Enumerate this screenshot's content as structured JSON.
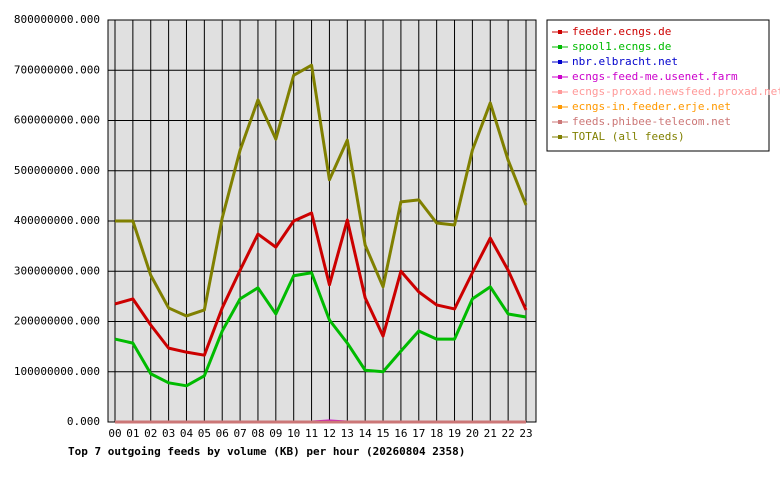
{
  "chart_data": {
    "type": "line",
    "title": "Top 7 outgoing feeds by volume (KB) per hour (20260804 2358)",
    "categories": [
      "00",
      "01",
      "02",
      "03",
      "04",
      "05",
      "06",
      "07",
      "08",
      "09",
      "10",
      "11",
      "12",
      "13",
      "14",
      "15",
      "16",
      "17",
      "18",
      "19",
      "20",
      "21",
      "22",
      "23"
    ],
    "ylim": [
      0,
      800000000
    ],
    "yticks": [
      {
        "value": 0,
        "label": "0.000"
      },
      {
        "value": 100000000,
        "label": "100000000.000"
      },
      {
        "value": 200000000,
        "label": "200000000.000"
      },
      {
        "value": 300000000,
        "label": "300000000.000"
      },
      {
        "value": 400000000,
        "label": "400000000.000"
      },
      {
        "value": 500000000,
        "label": "500000000.000"
      },
      {
        "value": 600000000,
        "label": "600000000.000"
      },
      {
        "value": 700000000,
        "label": "700000000.000"
      },
      {
        "value": 800000000,
        "label": "800000000.000"
      }
    ],
    "grid": true,
    "legend": "right",
    "series": [
      {
        "name": "feeder.ecngs.de",
        "color": "#cc0000",
        "values": [
          235000000,
          245000000,
          193000000,
          147000000,
          139000000,
          133000000,
          227000000,
          302000000,
          374000000,
          348000000,
          400000000,
          416000000,
          273000000,
          402000000,
          247000000,
          171000000,
          300000000,
          259000000,
          233000000,
          225000000,
          297000000,
          366000000,
          302000000,
          223000000
        ]
      },
      {
        "name": "spool1.ecngs.de",
        "color": "#00bb00",
        "values": [
          165000000,
          157000000,
          96000000,
          78000000,
          72000000,
          92000000,
          181000000,
          245000000,
          267000000,
          215000000,
          291000000,
          297000000,
          203000000,
          157000000,
          103000000,
          100000000,
          141000000,
          181000000,
          165000000,
          165000000,
          245000000,
          269000000,
          215000000,
          209000000
        ]
      },
      {
        "name": "nbr.elbracht.net",
        "color": "#0000cc",
        "values": [
          0,
          0,
          0,
          0,
          0,
          0,
          0,
          0,
          0,
          0,
          0,
          0,
          0,
          0,
          0,
          0,
          0,
          0,
          0,
          0,
          0,
          0,
          0,
          0
        ]
      },
      {
        "name": "ecngs-feed-me.usenet.farm",
        "color": "#cc00cc",
        "values": [
          0,
          0,
          0,
          0,
          0,
          0,
          0,
          0,
          0,
          0,
          0,
          0,
          2000000,
          0,
          0,
          0,
          0,
          0,
          0,
          0,
          0,
          0,
          0,
          0
        ]
      },
      {
        "name": "ecngs-proxad.newsfeed.proxad.net",
        "color": "#ff9999",
        "values": [
          0,
          0,
          0,
          0,
          0,
          0,
          0,
          0,
          0,
          0,
          0,
          0,
          0,
          0,
          0,
          0,
          0,
          0,
          0,
          0,
          0,
          0,
          0,
          0
        ]
      },
      {
        "name": "ecngs-in.feeder.erje.net",
        "color": "#ff9900",
        "values": [
          0,
          0,
          0,
          0,
          0,
          0,
          0,
          0,
          0,
          0,
          0,
          0,
          0,
          0,
          0,
          0,
          0,
          0,
          0,
          0,
          0,
          0,
          0,
          0
        ]
      },
      {
        "name": "feeds.phibee-telecom.net",
        "color": "#cc7777",
        "values": [
          0,
          0,
          0,
          0,
          0,
          0,
          0,
          0,
          0,
          0,
          0,
          0,
          0,
          0,
          0,
          0,
          0,
          0,
          0,
          0,
          0,
          0,
          0,
          0
        ]
      },
      {
        "name": "TOTAL (all feeds)",
        "color": "#808000",
        "values": [
          400000000,
          400000000,
          292000000,
          227000000,
          211000000,
          223000000,
          406000000,
          541000000,
          641000000,
          563000000,
          690000000,
          710000000,
          482000000,
          561000000,
          352000000,
          269000000,
          438000000,
          442000000,
          396000000,
          392000000,
          541000000,
          635000000,
          521000000,
          432000000
        ]
      }
    ]
  }
}
